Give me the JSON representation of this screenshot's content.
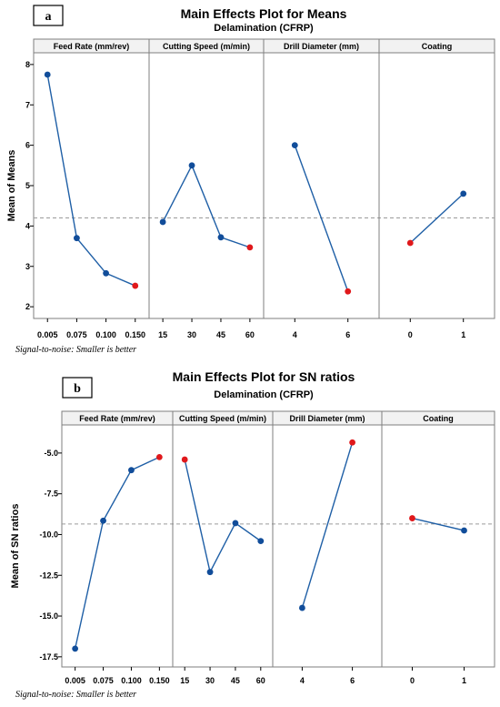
{
  "chart_data": [
    {
      "type": "line",
      "panel_letter": "a",
      "title": "Main Effects Plot for Means",
      "subtitle": "Delamination (CFRP)",
      "ylabel": "Mean of Means",
      "ylim": [
        1.8,
        8.2
      ],
      "yticks": [
        "2",
        "3",
        "4",
        "5",
        "6",
        "7",
        "8"
      ],
      "reference_line": 4.2,
      "note": "Signal-to-noise: Smaller is better",
      "factors": [
        {
          "name": "Feed Rate (mm/rev)",
          "levels": [
            "0.005",
            "0.075",
            "0.100",
            "0.150"
          ],
          "values": [
            7.75,
            3.7,
            2.83,
            2.52
          ],
          "optimal_index": 3
        },
        {
          "name": "Cutting Speed (m/min)",
          "levels": [
            "15",
            "30",
            "45",
            "60"
          ],
          "values": [
            4.1,
            5.5,
            3.72,
            3.47
          ],
          "optimal_index": 3
        },
        {
          "name": "Drill Diameter (mm)",
          "levels": [
            "4",
            "6"
          ],
          "values": [
            6.0,
            2.38
          ],
          "optimal_index": 1
        },
        {
          "name": "Coating",
          "levels": [
            "0",
            "1"
          ],
          "values": [
            3.58,
            4.8
          ],
          "optimal_index": 0
        }
      ]
    },
    {
      "type": "line",
      "panel_letter": "b",
      "title": "Main Effects Plot for SN ratios",
      "subtitle": "Delamination (CFRP)",
      "ylabel": "Mean of SN ratios",
      "ylim": [
        -17.9,
        -3.5
      ],
      "yticks": [
        "-17.5",
        "-15.0",
        "-12.5",
        "-10.0",
        "-7.5",
        "-5.0"
      ],
      "reference_line": -9.35,
      "note": "Signal-to-noise: Smaller is better",
      "factors": [
        {
          "name": "Feed Rate (mm/rev)",
          "levels": [
            "0.005",
            "0.075",
            "0.100",
            "0.150"
          ],
          "values": [
            -17.0,
            -9.15,
            -6.05,
            -5.25
          ],
          "optimal_index": 3
        },
        {
          "name": "Cutting Speed (m/min)",
          "levels": [
            "15",
            "30",
            "45",
            "60"
          ],
          "values": [
            -5.4,
            -12.3,
            -9.3,
            -10.4
          ],
          "optimal_index": 0
        },
        {
          "name": "Drill Diameter (mm)",
          "levels": [
            "4",
            "6"
          ],
          "values": [
            -14.5,
            -4.35
          ],
          "optimal_index": 1
        },
        {
          "name": "Coating",
          "levels": [
            "0",
            "1"
          ],
          "values": [
            -9.0,
            -9.75
          ],
          "optimal_index": 0
        }
      ]
    }
  ],
  "colors": {
    "line": "#1f5fa6",
    "point": "#114d9a",
    "optimal_point": "#e0181b",
    "reference": "#9a9a9a",
    "frame": "#7f7f7f",
    "header_bg": "#f2f2f2"
  }
}
